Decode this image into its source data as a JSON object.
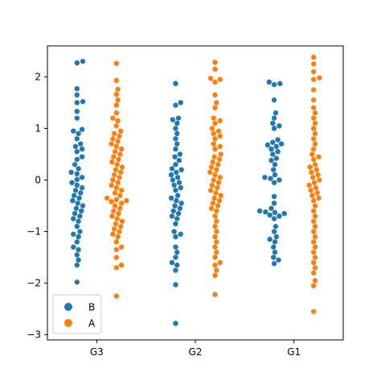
{
  "chart_data": {
    "type": "scatter",
    "subtype": "swarm",
    "categories": [
      "G3",
      "G2",
      "G1"
    ],
    "ylim": [
      -3.1,
      2.6
    ],
    "yticks": [
      -3,
      -2,
      -1,
      0,
      1,
      2
    ],
    "ytick_labels": [
      "−3",
      "−2",
      "−1",
      "0",
      "1",
      "2"
    ],
    "grid": false,
    "legend": {
      "placement": "lower-left"
    },
    "series": [
      {
        "name": "B",
        "color": "#1f77b4",
        "values": [
          [
            2.3,
            2.27,
            1.77,
            1.65,
            1.52,
            1.5,
            1.33,
            1.2,
            0.98,
            0.95,
            0.9,
            0.8,
            0.7,
            0.65,
            0.6,
            0.55,
            0.45,
            0.4,
            0.3,
            0.22,
            0.15,
            0.12,
            0.05,
            0.01,
            -0.05,
            -0.1,
            -0.15,
            -0.2,
            -0.25,
            -0.3,
            -0.35,
            -0.4,
            -0.45,
            -0.5,
            -0.55,
            -0.6,
            -0.65,
            -0.7,
            -0.75,
            -0.8,
            -0.9,
            -1.0,
            -1.05,
            -1.1,
            -1.2,
            -1.3,
            -1.35,
            -1.45,
            -1.55,
            -1.65,
            -1.98
          ],
          [
            1.87,
            1.5,
            1.45,
            1.2,
            1.17,
            1.1,
            1.0,
            0.9,
            0.8,
            0.7,
            0.6,
            0.5,
            0.45,
            0.38,
            0.3,
            0.22,
            0.2,
            0.15,
            0.1,
            0.05,
            0.0,
            -0.05,
            -0.1,
            -0.15,
            -0.2,
            -0.3,
            -0.35,
            -0.4,
            -0.45,
            -0.5,
            -0.55,
            -0.6,
            -0.65,
            -0.7,
            -0.75,
            -0.85,
            -1.0,
            -1.05,
            -1.1,
            -1.3,
            -1.4,
            -1.5,
            -1.6,
            -1.65,
            -1.75,
            -2.03,
            -2.78
          ],
          [
            1.9,
            1.87,
            1.85,
            1.55,
            1.3,
            1.2,
            1.1,
            1.05,
            1.0,
            0.78,
            0.73,
            0.7,
            0.68,
            0.65,
            0.6,
            0.55,
            0.5,
            0.42,
            0.38,
            0.3,
            0.2,
            0.1,
            0.05,
            0.03,
            0.0,
            -0.05,
            -0.32,
            -0.45,
            -0.55,
            -0.6,
            -0.62,
            -0.63,
            -0.65,
            -0.68,
            -0.7,
            -0.75,
            -0.9,
            -1.0,
            -1.1,
            -1.15,
            -1.2,
            -1.3,
            -1.4,
            -1.5,
            -1.55,
            -1.62
          ]
        ]
      },
      {
        "name": "A",
        "color": "#ff7f0e",
        "values": [
          [
            2.26,
            1.93,
            1.76,
            1.66,
            1.55,
            1.45,
            1.3,
            1.2,
            1.15,
            1.05,
            0.95,
            0.9,
            0.85,
            0.8,
            0.75,
            0.7,
            0.65,
            0.6,
            0.55,
            0.5,
            0.45,
            0.4,
            0.35,
            0.3,
            0.25,
            0.2,
            0.15,
            0.1,
            0.05,
            0.0,
            -0.05,
            -0.1,
            -0.15,
            -0.2,
            -0.25,
            -0.3,
            -0.35,
            -0.38,
            -0.4,
            -0.42,
            -0.45,
            -0.5,
            -0.55,
            -0.6,
            -0.65,
            -0.7,
            -0.75,
            -0.8,
            -0.85,
            -0.9,
            -0.95,
            -1.0,
            -1.05,
            -1.1,
            -1.2,
            -1.3,
            -1.35,
            -1.5,
            -1.65,
            -1.7,
            -2.25
          ],
          [
            2.28,
            2.15,
            1.97,
            1.95,
            1.9,
            1.65,
            1.5,
            1.4,
            1.2,
            1.15,
            1.1,
            1.0,
            0.95,
            0.9,
            0.85,
            0.8,
            0.7,
            0.65,
            0.6,
            0.5,
            0.45,
            0.4,
            0.35,
            0.3,
            0.25,
            0.2,
            0.15,
            0.1,
            0.05,
            0.0,
            -0.05,
            -0.1,
            -0.15,
            -0.2,
            -0.25,
            -0.3,
            -0.35,
            -0.4,
            -0.45,
            -0.5,
            -0.55,
            -0.6,
            -0.7,
            -0.8,
            -0.9,
            -1.0,
            -1.1,
            -1.2,
            -1.3,
            -1.4,
            -1.5,
            -1.6,
            -1.65,
            -1.75,
            -1.85,
            -2.22
          ],
          [
            2.38,
            2.25,
            2.1,
            1.98,
            1.95,
            1.75,
            1.55,
            1.4,
            1.3,
            1.2,
            1.1,
            1.0,
            0.9,
            0.8,
            0.7,
            0.6,
            0.5,
            0.45,
            0.4,
            0.3,
            0.25,
            0.2,
            0.15,
            0.1,
            0.05,
            0.0,
            -0.05,
            -0.1,
            -0.15,
            -0.2,
            -0.25,
            -0.3,
            -0.35,
            -0.4,
            -0.5,
            -0.6,
            -0.7,
            -0.8,
            -0.9,
            -1.0,
            -1.1,
            -1.2,
            -1.3,
            -1.4,
            -1.5,
            -1.6,
            -1.7,
            -1.8,
            -1.95,
            -2.05,
            -2.55
          ]
        ]
      }
    ]
  }
}
